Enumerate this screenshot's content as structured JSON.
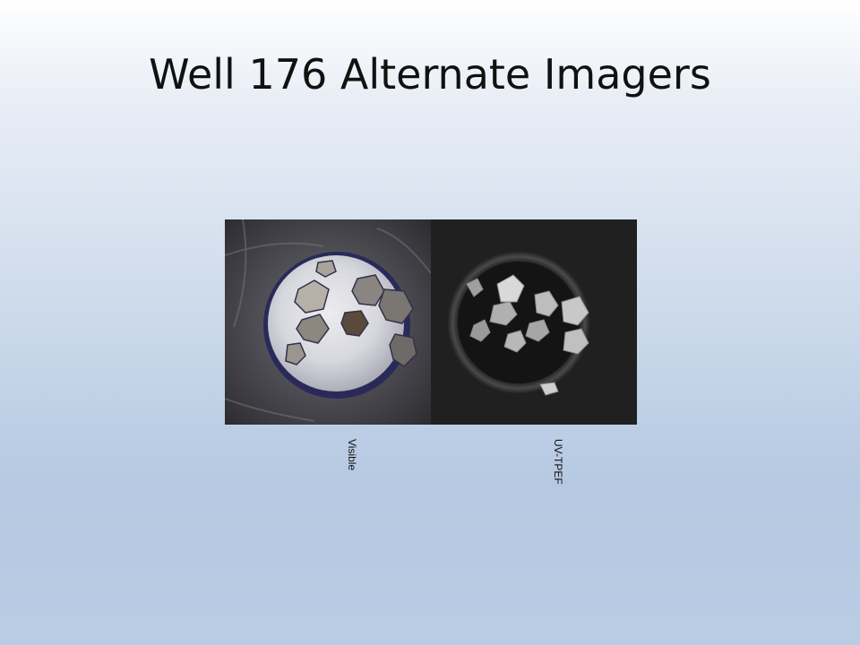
{
  "slide": {
    "title": "Well 176 Alternate Imagers"
  },
  "images": [
    {
      "caption": "Visible"
    },
    {
      "caption": "UV-TPEF"
    }
  ]
}
